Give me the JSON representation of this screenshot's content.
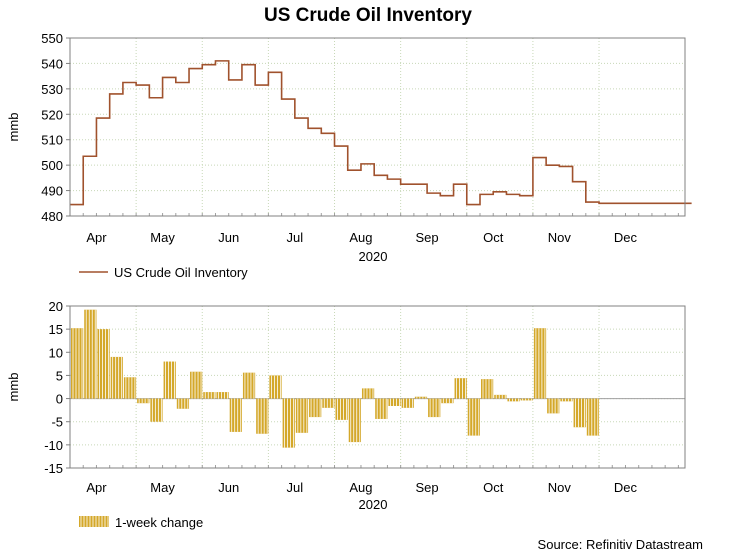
{
  "title": "US Crude Oil Inventory",
  "source": "Source: Refinitiv Datastream",
  "year_label": "2020",
  "colors": {
    "line": "#a0522d",
    "bar": "#d4a82a",
    "bar_stripe": "#ffffff"
  },
  "chart_data": [
    {
      "type": "line",
      "ylabel": "mmb",
      "ylim": [
        480,
        550
      ],
      "yticks": [
        480,
        490,
        500,
        510,
        520,
        530,
        540,
        550
      ],
      "xlim": [
        0,
        46.5
      ],
      "months": [
        "Apr",
        "May",
        "Jun",
        "Jul",
        "Aug",
        "Sep",
        "Oct",
        "Nov",
        "Dec"
      ],
      "month_positions": [
        2,
        7,
        12,
        17,
        22,
        27,
        32,
        37,
        42
      ],
      "step": true,
      "grid": true,
      "legend": "bottom-left",
      "series": [
        {
          "name": "US Crude Oil Inventory",
          "x": [
            0,
            1,
            2,
            3,
            4,
            5,
            6,
            7,
            8,
            9,
            10,
            11,
            12,
            13,
            14,
            15,
            16,
            17,
            18,
            19,
            20,
            21,
            22,
            23,
            24,
            25,
            26,
            27,
            28,
            29,
            30,
            31,
            32,
            33,
            34,
            35,
            36,
            37,
            38,
            39,
            40,
            41,
            42,
            43,
            44,
            45,
            46
          ],
          "values": [
            484.5,
            503.5,
            518.5,
            528,
            532.5,
            531.5,
            526.5,
            534.5,
            532.5,
            538,
            539.5,
            541,
            533.5,
            539.5,
            531.5,
            536.5,
            526,
            518.5,
            514.5,
            512.5,
            507.5,
            498,
            500.5,
            496,
            494.5,
            492.5,
            492.5,
            489,
            488,
            492.5,
            484.5,
            488.5,
            489.5,
            488.5,
            488,
            503,
            500,
            499.5,
            493.5,
            485.5,
            485,
            485,
            485,
            485,
            485,
            485,
            485
          ]
        }
      ]
    },
    {
      "type": "bar",
      "ylabel": "mmb",
      "ylim": [
        -15,
        20
      ],
      "yticks": [
        -15,
        -10,
        -5,
        0,
        5,
        10,
        15,
        20
      ],
      "xlim": [
        0,
        46.5
      ],
      "months": [
        "Apr",
        "May",
        "Jun",
        "Jul",
        "Aug",
        "Sep",
        "Oct",
        "Nov",
        "Dec"
      ],
      "month_positions": [
        2,
        7,
        12,
        17,
        22,
        27,
        32,
        37,
        42
      ],
      "grid": true,
      "legend": "bottom-left",
      "series": [
        {
          "name": "1-week change",
          "x": [
            0,
            1,
            2,
            3,
            4,
            5,
            6,
            7,
            8,
            9,
            10,
            11,
            12,
            13,
            14,
            15,
            16,
            17,
            18,
            19,
            20,
            21,
            22,
            23,
            24,
            25,
            26,
            27,
            28,
            29,
            30,
            31,
            32,
            33,
            34,
            35,
            36,
            37,
            38,
            39,
            40,
            41,
            42,
            43,
            44,
            45,
            46
          ],
          "values": [
            15.2,
            19.2,
            15,
            9,
            4.6,
            -1,
            -5,
            8,
            -2.2,
            5.8,
            1.4,
            1.4,
            -7.2,
            5.6,
            -7.6,
            5,
            -10.6,
            -7.4,
            -4,
            -2,
            -4.6,
            -9.4,
            2.2,
            -4.4,
            -1.6,
            -2,
            0.4,
            -4,
            -1,
            4.4,
            -8,
            4.2,
            0.8,
            -0.6,
            -0.4,
            15.2,
            -3.2,
            -0.6,
            -6.2,
            -8.0,
            0,
            0,
            0,
            0,
            0,
            0,
            0
          ]
        }
      ]
    }
  ]
}
